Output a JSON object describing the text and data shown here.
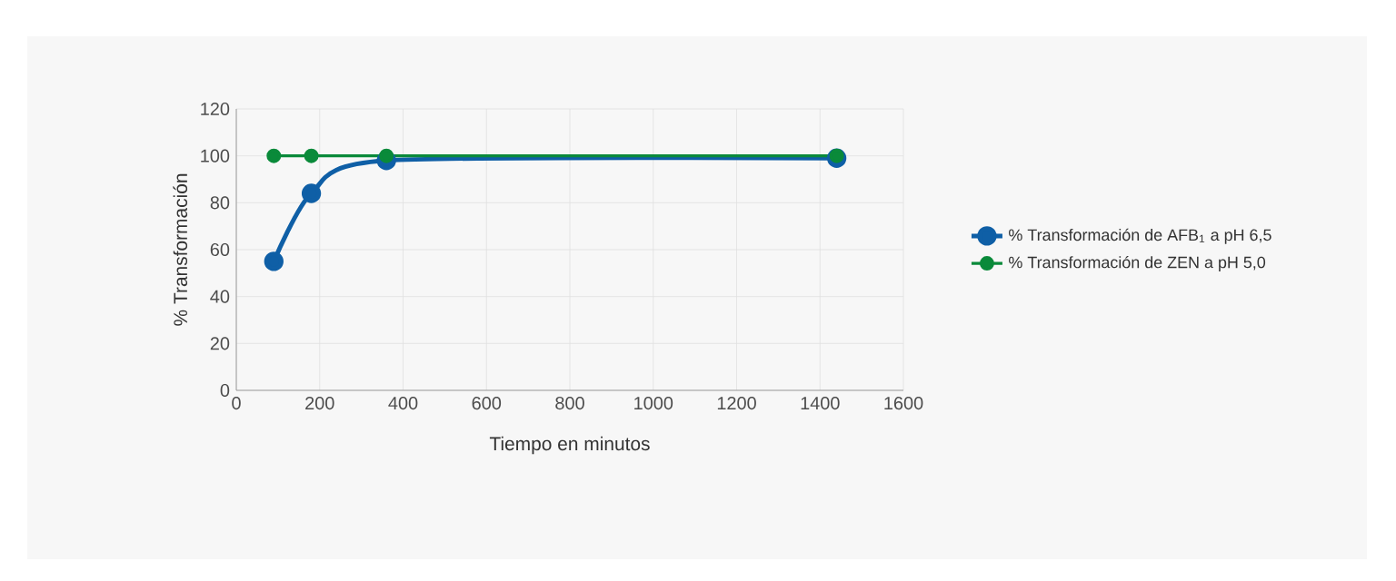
{
  "chart_data": {
    "type": "line",
    "xlabel": "Tiempo en minutos",
    "ylabel": "% Transformación",
    "x": [
      90,
      180,
      360,
      1440
    ],
    "series": [
      {
        "name": "% Transformación de AFB$_{1}$ a pH 6,5",
        "color": "#0f5fa6",
        "values": [
          55,
          84,
          98,
          99
        ]
      },
      {
        "name": "% Transformación de ZEN a pH 5,0",
        "color": "#0a8a3a",
        "values": [
          100,
          100,
          100,
          100
        ]
      }
    ],
    "xlim": [
      0,
      1600
    ],
    "xticks": [
      0,
      200,
      400,
      600,
      800,
      1000,
      1200,
      1400,
      1600
    ],
    "ylim": [
      0,
      120
    ],
    "yticks": [
      0,
      20,
      40,
      60,
      80,
      100,
      120
    ],
    "grid": true,
    "legend": "right",
    "marker": "circle",
    "line_style": "solid"
  }
}
